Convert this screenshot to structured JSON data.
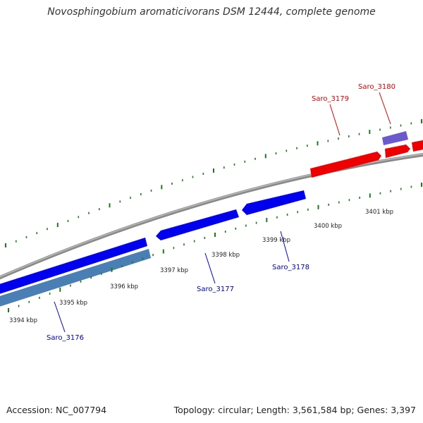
{
  "title": "Novosphingobium aromaticivorans DSM 12444, complete genome",
  "colors": {
    "backbone": "#8a8a8a",
    "forward_gene": "#ff0000",
    "reverse_gene": "#0000ff",
    "blue_label": "#0000aa",
    "red_label": "#dd0000",
    "tick": "#1e7a1e",
    "light_blue_band": "#4a7fb5",
    "purple_gene": "#6a5acd"
  },
  "ruler": {
    "ticks": [
      "3394 kbp",
      "3395 kbp",
      "3396 kbp",
      "3397 kbp",
      "3398 kbp",
      "3399 kbp",
      "3400 kbp",
      "3401 kbp"
    ]
  },
  "genes": [
    {
      "label": "Saro_3176",
      "strand": "reverse"
    },
    {
      "label": "Saro_3177",
      "strand": "reverse"
    },
    {
      "label": "Saro_3178",
      "strand": "reverse"
    },
    {
      "label": "Saro_3179",
      "strand": "forward"
    },
    {
      "label": "Saro_3180",
      "strand": "forward"
    }
  ],
  "footer": {
    "accession": "Accession: NC_007794",
    "summary": "Topology: circular; Length: 3,561,584 bp; Genes: 3,397"
  }
}
